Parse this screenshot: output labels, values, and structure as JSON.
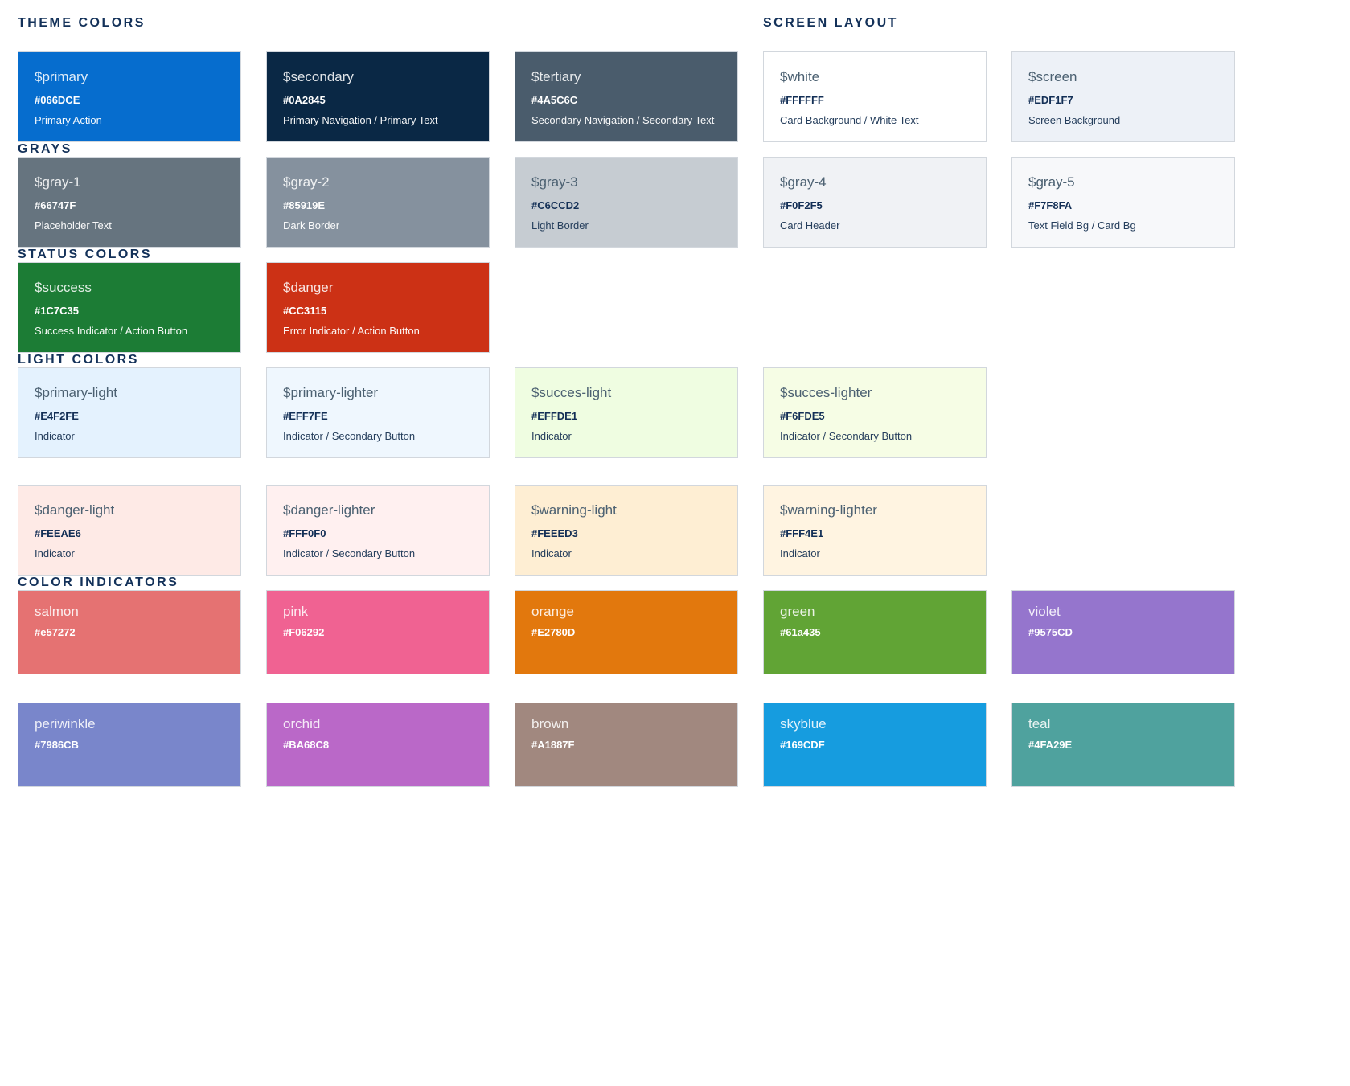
{
  "sections": {
    "theme": {
      "title": "THEME COLORS",
      "swatches": [
        {
          "name": "$primary",
          "hex": "#066DCE",
          "usage": "Primary Action"
        },
        {
          "name": "$secondary",
          "hex": "#0A2845",
          "usage": "Primary Navigation / Primary Text"
        },
        {
          "name": "$tertiary",
          "hex": "#4A5C6C",
          "usage": "Secondary Navigation / Secondary Text"
        }
      ]
    },
    "screen_layout": {
      "title": "SCREEN LAYOUT",
      "swatches": [
        {
          "name": "$white",
          "hex": "#FFFFFF",
          "usage": "Card Background / White Text"
        },
        {
          "name": "$screen",
          "hex": "#EDF1F7",
          "usage": "Screen Background"
        }
      ]
    },
    "grays": {
      "title": "GRAYS",
      "swatches": [
        {
          "name": "$gray-1",
          "hex": "#66747F",
          "usage": "Placeholder Text"
        },
        {
          "name": "$gray-2",
          "hex": "#85919E",
          "usage": "Dark Border"
        },
        {
          "name": "$gray-3",
          "hex": "#C6CCD2",
          "usage": "Light Border"
        },
        {
          "name": "$gray-4",
          "hex": "#F0F2F5",
          "usage": "Card Header"
        },
        {
          "name": "$gray-5",
          "hex": "#F7F8FA",
          "usage": "Text Field Bg / Card Bg"
        }
      ]
    },
    "status": {
      "title": "STATUS COLORS",
      "swatches": [
        {
          "name": "$success",
          "hex": "#1C7C35",
          "usage": "Success Indicator / Action Button"
        },
        {
          "name": "$danger",
          "hex": "#CC3115",
          "usage": "Error Indicator / Action Button"
        }
      ]
    },
    "light": {
      "title": "LIGHT COLORS",
      "rows": [
        [
          {
            "name": "$primary-light",
            "hex": "#E4F2FE",
            "usage": "Indicator"
          },
          {
            "name": "$primary-lighter",
            "hex": "#EFF7FE",
            "usage": "Indicator / Secondary Button"
          },
          {
            "name": "$succes-light",
            "hex": "#EFFDE1",
            "usage": "Indicator"
          },
          {
            "name": "$succes-lighter",
            "hex": "#F6FDE5",
            "usage": "Indicator / Secondary Button"
          }
        ],
        [
          {
            "name": "$danger-light",
            "hex": "#FEEAE6",
            "usage": "Indicator"
          },
          {
            "name": "$danger-lighter",
            "hex": "#FFF0F0",
            "usage": "Indicator / Secondary Button"
          },
          {
            "name": "$warning-light",
            "hex": "#FEEED3",
            "usage": "Indicator"
          },
          {
            "name": "$warning-lighter",
            "hex": "#FFF4E1",
            "usage": "Indicator"
          }
        ]
      ]
    },
    "indicators": {
      "title": "COLOR INDICATORS",
      "rows": [
        [
          {
            "name": "salmon",
            "hex": "#e57272"
          },
          {
            "name": "pink",
            "hex": "#F06292"
          },
          {
            "name": "orange",
            "hex": "#E2780D"
          },
          {
            "name": "green",
            "hex": "#61a435"
          },
          {
            "name": "violet",
            "hex": "#9575CD"
          }
        ],
        [
          {
            "name": "periwinkle",
            "hex": "#7986CB"
          },
          {
            "name": "orchid",
            "hex": "#BA68C8"
          },
          {
            "name": "brown",
            "hex": "#A1887F"
          },
          {
            "name": "skyblue",
            "hex": "#169CDF"
          },
          {
            "name": "teal",
            "hex": "#4FA29E"
          }
        ]
      ]
    }
  }
}
